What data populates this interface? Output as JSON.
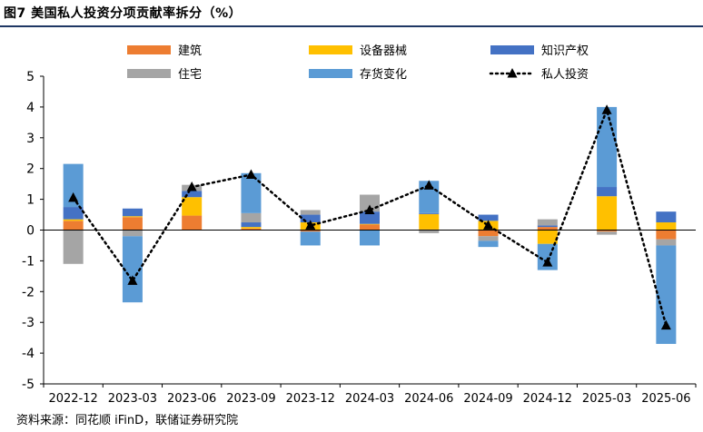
{
  "title": "图7  美国私人投资分项贡献率拆分（%）",
  "source": "资料来源：同花顺 iFinD，联储证券研究院",
  "colors": {
    "construction": "#ed7d31",
    "equipment": "#ffc000",
    "ip": "#4472c4",
    "residential": "#a5a5a5",
    "inventory": "#5b9bd5",
    "total": "#000000"
  },
  "chart_data": {
    "type": "bar",
    "stacked": true,
    "categories": [
      "2022-12",
      "2023-03",
      "2023-06",
      "2023-09",
      "2023-12",
      "2024-03",
      "2024-06",
      "2024-09",
      "2024-12",
      "2025-03",
      "2025-06"
    ],
    "ylim": [
      -5,
      5
    ],
    "yticks": [
      5,
      4,
      3,
      2,
      1,
      0,
      -1,
      -2,
      -3,
      -4,
      -5
    ],
    "grid": false,
    "legend_position": "top",
    "series": [
      {
        "name": "建筑",
        "key": "construction",
        "kind": "bar",
        "values": [
          0.3,
          0.42,
          0.47,
          0.05,
          -0.05,
          0.18,
          0.02,
          -0.2,
          0.1,
          -0.05,
          -0.3
        ]
      },
      {
        "name": "设备器械",
        "key": "equipment",
        "kind": "bar",
        "values": [
          0.05,
          0.03,
          0.6,
          0.05,
          0.25,
          0.02,
          0.5,
          0.3,
          -0.45,
          1.1,
          0.25
        ]
      },
      {
        "name": "知识产权",
        "key": "ip",
        "kind": "bar",
        "values": [
          0.4,
          0.25,
          0.2,
          0.15,
          0.25,
          0.4,
          0.03,
          0.2,
          0.05,
          0.3,
          0.35
        ]
      },
      {
        "name": "住宅",
        "key": "residential",
        "kind": "bar",
        "values": [
          -1.1,
          -0.2,
          0.2,
          0.3,
          0.15,
          0.55,
          -0.1,
          -0.15,
          0.2,
          -0.1,
          -0.2
        ]
      },
      {
        "name": "存货变化",
        "key": "inventory",
        "kind": "bar",
        "values": [
          1.4,
          -2.15,
          0.0,
          1.3,
          -0.45,
          -0.5,
          1.05,
          -0.2,
          -0.85,
          2.6,
          -3.2
        ]
      },
      {
        "name": "私人投资",
        "key": "total",
        "kind": "line",
        "values": [
          1.05,
          -1.65,
          1.4,
          1.8,
          0.15,
          0.65,
          1.45,
          0.15,
          -1.05,
          3.9,
          -3.1
        ]
      }
    ]
  }
}
